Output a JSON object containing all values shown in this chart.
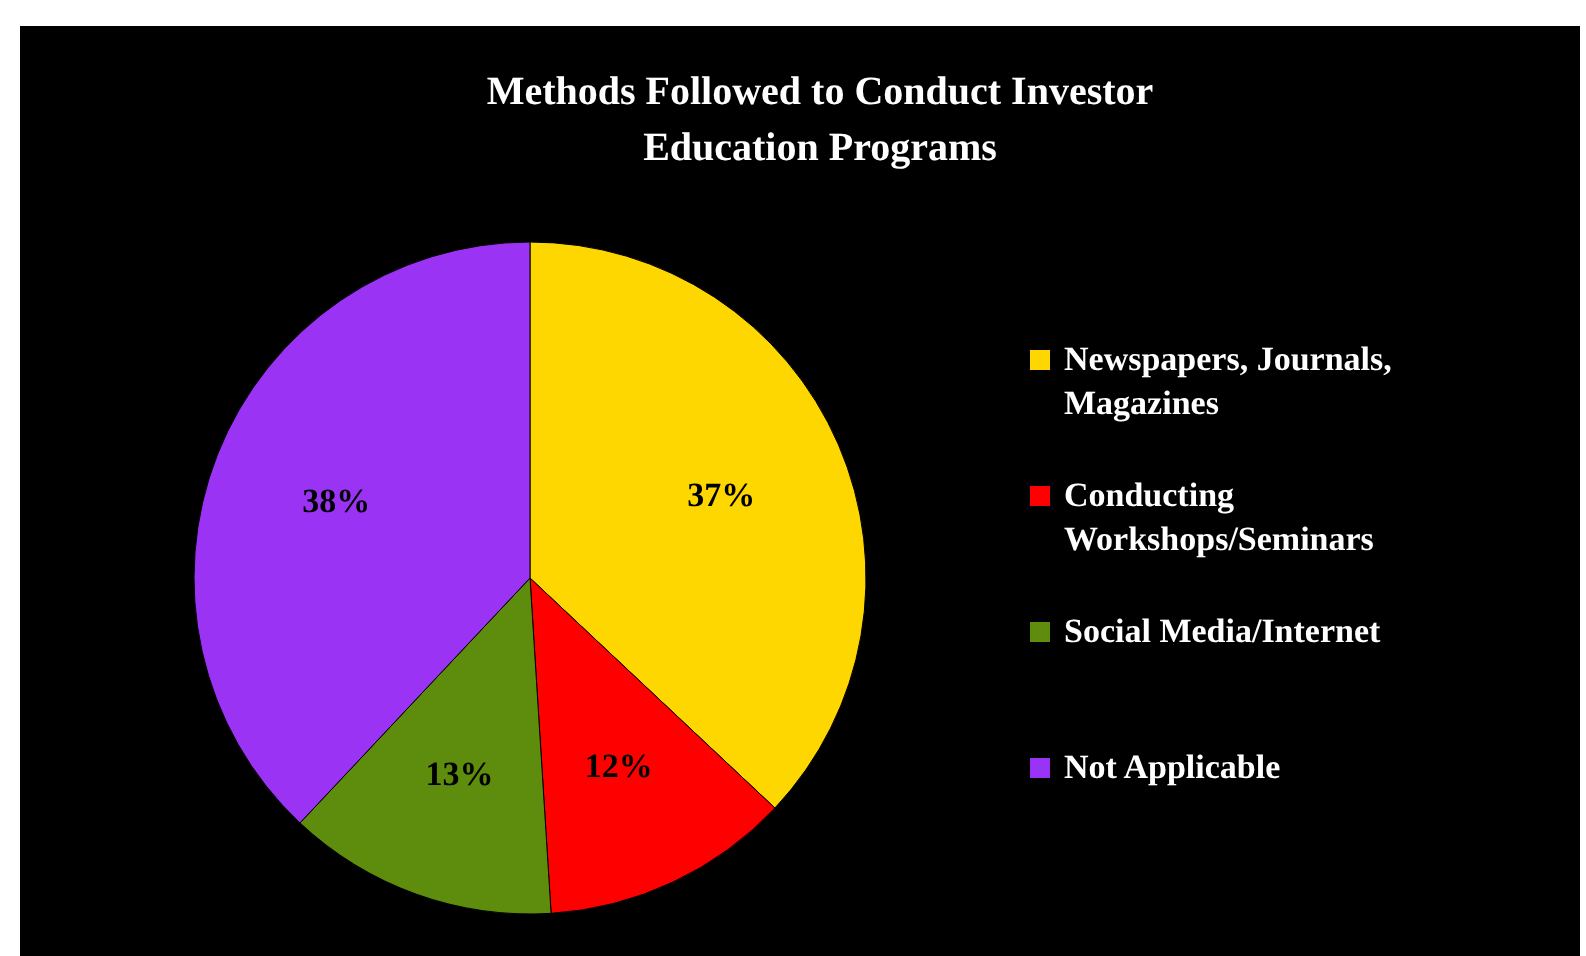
{
  "chart_data": {
    "type": "pie",
    "title": "Methods  Followed to Conduct Investor Education Programs",
    "categories": [
      "Newspapers, Journals, Magazines",
      "Conducting Workshops/Seminars",
      "Social Media/Internet",
      "Not Applicable"
    ],
    "values": [
      37,
      12,
      13,
      38
    ],
    "colors": [
      "#ffd700",
      "#ff0000",
      "#5e8c0c",
      "#9b33f5"
    ],
    "value_labels": [
      "37%",
      "12%",
      "13%",
      "38%"
    ],
    "legend": "right"
  }
}
